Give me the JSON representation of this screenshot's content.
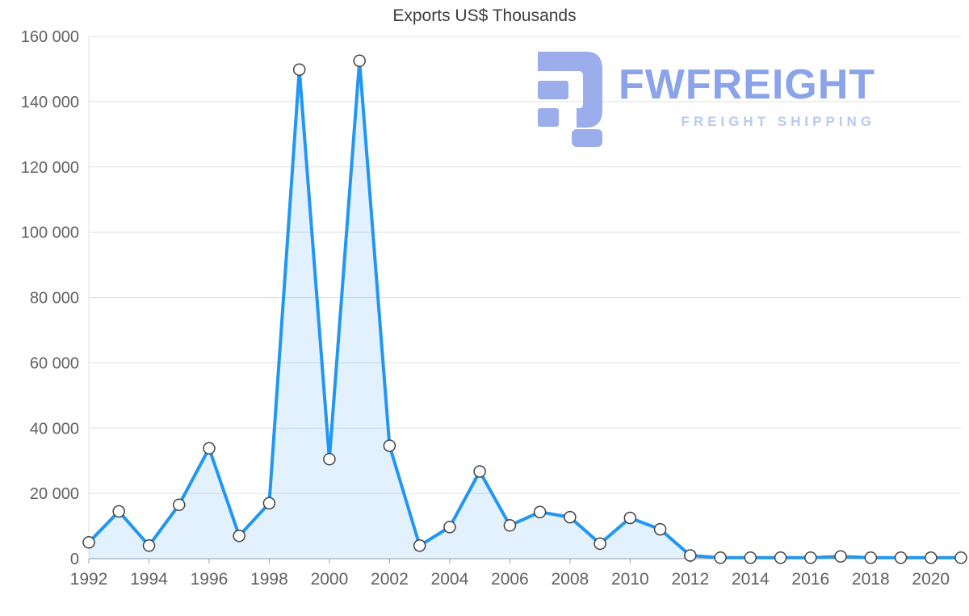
{
  "logo": {
    "name": "FWFREIGHT",
    "tagline": "FREIGHT SHIPPING",
    "color": "#9badea",
    "name_color": "#8ba3e8",
    "tagline_color": "#b9c9f4"
  },
  "chart_data": {
    "type": "area",
    "title": "Exports US$ Thousands",
    "xlabel": "",
    "ylabel": "",
    "x": [
      1992,
      1993,
      1994,
      1995,
      1996,
      1997,
      1998,
      1999,
      2000,
      2001,
      2002,
      2003,
      2004,
      2005,
      2006,
      2007,
      2008,
      2009,
      2010,
      2011,
      2012,
      2013,
      2014,
      2015,
      2016,
      2017,
      2018,
      2019,
      2020,
      2021
    ],
    "values": [
      5000,
      14500,
      4000,
      16500,
      33800,
      7000,
      17000,
      149800,
      30500,
      152500,
      34600,
      4000,
      9700,
      26700,
      10200,
      14300,
      12700,
      4600,
      12500,
      9000,
      1000,
      300,
      300,
      300,
      300,
      700,
      300,
      300,
      300,
      300
    ],
    "ylim": [
      0,
      160000
    ],
    "ytick_step": 20000,
    "xtick_labels": [
      1992,
      1994,
      1996,
      1998,
      2000,
      2002,
      2004,
      2006,
      2008,
      2010,
      2012,
      2014,
      2016,
      2018,
      2020
    ],
    "grid": true,
    "legend": "none",
    "line_color": "#2196f3",
    "fill_color": "#2196f3",
    "fill_opacity": 0.13,
    "marker_fill": "#ffffff",
    "marker_stroke": "#424242",
    "grid_color": "#e0e0e0",
    "axis_color": "#9e9e9e",
    "label_color": "#616161",
    "title_color": "#3d3d3d"
  }
}
